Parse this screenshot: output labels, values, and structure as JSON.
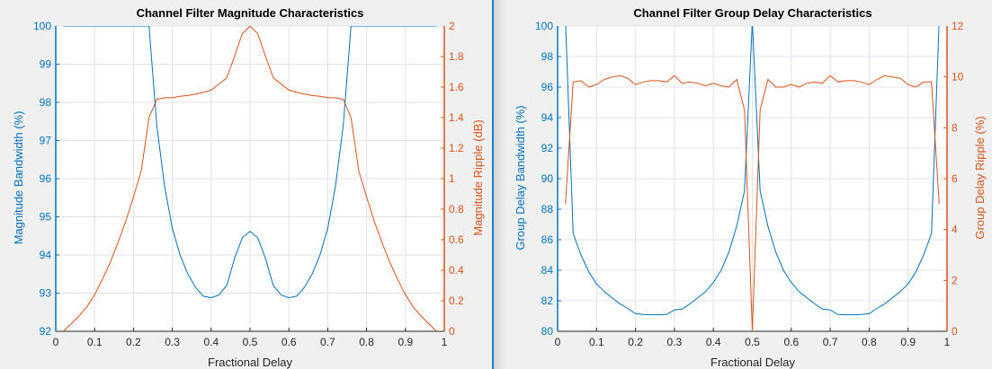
{
  "colors": {
    "left": "#0072bd",
    "right": "#d95319",
    "grid": "#dfe3e8",
    "axis": "#262626"
  },
  "chart_data": [
    {
      "type": "line",
      "title": "Channel Filter Magnitude Characteristics",
      "xlabel": "Fractional Delay",
      "ylabel_left": "Magnitude Bandwidth (%)",
      "ylabel_right": "Magnitude Ripple (dB)",
      "xlim": [
        0,
        1
      ],
      "ylim_left": [
        92,
        100
      ],
      "ylim_right": [
        0,
        2
      ],
      "xticks": [
        "0",
        "0.1",
        "0.2",
        "0.3",
        "0.4",
        "0.5",
        "0.6",
        "0.7",
        "0.8",
        "0.9",
        "1"
      ],
      "yticks_left": [
        "92",
        "93",
        "94",
        "95",
        "96",
        "97",
        "98",
        "99",
        "100"
      ],
      "yticks_right": [
        "0",
        "0.2",
        "0.4",
        "0.6",
        "0.8",
        "1",
        "1.2",
        "1.4",
        "1.6",
        "1.8",
        "2"
      ],
      "grid": true,
      "x": [
        0.02,
        0.04,
        0.06,
        0.08,
        0.1,
        0.12,
        0.14,
        0.16,
        0.18,
        0.2,
        0.22,
        0.24,
        0.26,
        0.28,
        0.3,
        0.32,
        0.34,
        0.36,
        0.38,
        0.4,
        0.42,
        0.44,
        0.46,
        0.48,
        0.5,
        0.52,
        0.54,
        0.56,
        0.58,
        0.6,
        0.62,
        0.64,
        0.66,
        0.68,
        0.7,
        0.72,
        0.74,
        0.76,
        0.78,
        0.8,
        0.82,
        0.84,
        0.86,
        0.88,
        0.9,
        0.92,
        0.94,
        0.96,
        0.98
      ],
      "series": [
        {
          "name": "Magnitude Bandwidth (%)",
          "axis": "left",
          "values": [
            100,
            100,
            100,
            100,
            100,
            100,
            100,
            100,
            100,
            100,
            100,
            100,
            97.4,
            95.8,
            94.7,
            94.0,
            93.5,
            93.15,
            92.92,
            92.88,
            92.95,
            93.2,
            93.9,
            94.45,
            94.62,
            94.45,
            93.9,
            93.2,
            92.95,
            92.88,
            92.92,
            93.15,
            93.5,
            94.0,
            94.7,
            95.8,
            97.4,
            100,
            100,
            100,
            100,
            100,
            100,
            100,
            100,
            100,
            100,
            100,
            100
          ]
        },
        {
          "name": "Magnitude Ripple (dB)",
          "axis": "right",
          "values": [
            0,
            0.05,
            0.1,
            0.16,
            0.24,
            0.34,
            0.45,
            0.58,
            0.72,
            0.88,
            1.05,
            1.4,
            1.52,
            1.53,
            1.53,
            1.54,
            1.545,
            1.555,
            1.565,
            1.58,
            1.62,
            1.66,
            1.8,
            1.95,
            2.0,
            1.95,
            1.8,
            1.66,
            1.62,
            1.58,
            1.565,
            1.555,
            1.545,
            1.54,
            1.53,
            1.53,
            1.52,
            1.4,
            1.05,
            0.88,
            0.72,
            0.58,
            0.45,
            0.34,
            0.24,
            0.16,
            0.1,
            0.05,
            0
          ]
        }
      ]
    },
    {
      "type": "line",
      "title": "Channel Filter Group Delay Characteristics",
      "xlabel": "Fractional Delay",
      "ylabel_left": "Group Delay Bandwidth (%)",
      "ylabel_right": "Group Delay Ripple (%)",
      "xlim": [
        0,
        1
      ],
      "ylim_left": [
        80,
        100
      ],
      "ylim_right": [
        0,
        12
      ],
      "xticks": [
        "0",
        "0.1",
        "0.2",
        "0.3",
        "0.4",
        "0.5",
        "0.6",
        "0.7",
        "0.8",
        "0.9",
        "1"
      ],
      "yticks_left": [
        "80",
        "82",
        "84",
        "86",
        "88",
        "90",
        "92",
        "94",
        "96",
        "98",
        "100"
      ],
      "yticks_right": [
        "0",
        "2",
        "4",
        "6",
        "8",
        "10",
        "12"
      ],
      "grid": true,
      "x": [
        0.02,
        0.04,
        0.06,
        0.08,
        0.1,
        0.12,
        0.14,
        0.16,
        0.18,
        0.2,
        0.22,
        0.24,
        0.26,
        0.28,
        0.3,
        0.32,
        0.34,
        0.36,
        0.38,
        0.4,
        0.42,
        0.44,
        0.46,
        0.48,
        0.5,
        0.52,
        0.54,
        0.56,
        0.58,
        0.6,
        0.62,
        0.64,
        0.66,
        0.68,
        0.7,
        0.72,
        0.74,
        0.76,
        0.78,
        0.8,
        0.82,
        0.84,
        0.86,
        0.88,
        0.9,
        0.92,
        0.94,
        0.96,
        0.98
      ],
      "series": [
        {
          "name": "Group Delay Bandwidth (%)",
          "axis": "left",
          "values": [
            100.5,
            86.4,
            85.0,
            83.9,
            83.1,
            82.6,
            82.2,
            81.8,
            81.5,
            81.15,
            81.1,
            81.08,
            81.08,
            81.1,
            81.4,
            81.45,
            81.8,
            82.2,
            82.6,
            83.2,
            84.0,
            85.2,
            86.9,
            89.2,
            100.3,
            89.2,
            86.9,
            85.2,
            84.0,
            83.2,
            82.6,
            82.2,
            81.8,
            81.45,
            81.4,
            81.1,
            81.08,
            81.08,
            81.1,
            81.15,
            81.5,
            81.8,
            82.2,
            82.6,
            83.1,
            83.9,
            85.0,
            86.4,
            100.5
          ]
        },
        {
          "name": "Group Delay Ripple (%)",
          "axis": "right",
          "values": [
            5.0,
            9.8,
            9.85,
            9.6,
            9.7,
            9.9,
            10.0,
            10.05,
            9.95,
            9.7,
            9.8,
            9.85,
            9.85,
            9.8,
            10.05,
            9.75,
            9.8,
            9.75,
            9.65,
            9.75,
            9.65,
            9.6,
            9.9,
            8.7,
            0,
            8.7,
            9.9,
            9.6,
            9.6,
            9.7,
            9.6,
            9.75,
            9.8,
            9.75,
            10.05,
            9.8,
            9.85,
            9.85,
            9.8,
            9.7,
            9.9,
            10.05,
            10.0,
            9.95,
            9.7,
            9.6,
            9.8,
            9.8,
            5.0
          ]
        }
      ]
    }
  ]
}
